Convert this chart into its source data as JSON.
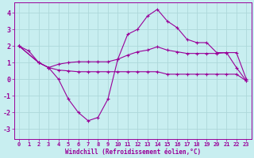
{
  "title": "",
  "xlabel": "Windchill (Refroidissement éolien,°C)",
  "ylabel": "",
  "background_color": "#c8eef0",
  "grid_color": "#add8da",
  "line_color": "#990099",
  "xlim": [
    -0.5,
    23.5
  ],
  "ylim": [
    -3.6,
    4.6
  ],
  "yticks": [
    -3,
    -2,
    -1,
    0,
    1,
    2,
    3,
    4
  ],
  "xticks": [
    0,
    1,
    2,
    3,
    4,
    5,
    6,
    7,
    8,
    9,
    10,
    11,
    12,
    13,
    14,
    15,
    16,
    17,
    18,
    19,
    20,
    21,
    22,
    23
  ],
  "line1_x": [
    0,
    1,
    2,
    3,
    4,
    5,
    6,
    7,
    8,
    9,
    10,
    11,
    12,
    13,
    14,
    15,
    16,
    17,
    18,
    19,
    20,
    21,
    22,
    23
  ],
  "line1_y": [
    2.0,
    1.7,
    1.0,
    0.7,
    0.0,
    -1.2,
    -2.0,
    -2.5,
    -2.3,
    -1.2,
    1.2,
    2.7,
    3.0,
    3.8,
    4.2,
    3.5,
    3.1,
    2.4,
    2.2,
    2.2,
    1.6,
    1.6,
    0.7,
    -0.1
  ],
  "line2_x": [
    0,
    2,
    3,
    4,
    5,
    6,
    7,
    8,
    9,
    10,
    11,
    12,
    13,
    14,
    15,
    16,
    17,
    18,
    19,
    20,
    21,
    22,
    23
  ],
  "line2_y": [
    2.0,
    1.0,
    0.7,
    0.9,
    1.0,
    1.05,
    1.05,
    1.05,
    1.05,
    1.2,
    1.45,
    1.65,
    1.75,
    1.95,
    1.75,
    1.65,
    1.55,
    1.55,
    1.55,
    1.55,
    1.6,
    1.6,
    0.0
  ],
  "line3_x": [
    0,
    2,
    3,
    4,
    5,
    6,
    7,
    8,
    9,
    10,
    11,
    12,
    13,
    14,
    15,
    16,
    17,
    18,
    19,
    20,
    21,
    22,
    23
  ],
  "line3_y": [
    2.0,
    1.0,
    0.7,
    0.55,
    0.5,
    0.45,
    0.45,
    0.45,
    0.45,
    0.45,
    0.45,
    0.45,
    0.45,
    0.45,
    0.3,
    0.3,
    0.3,
    0.3,
    0.3,
    0.3,
    0.3,
    0.3,
    -0.1
  ],
  "figsize": [
    3.2,
    2.0
  ],
  "dpi": 100
}
